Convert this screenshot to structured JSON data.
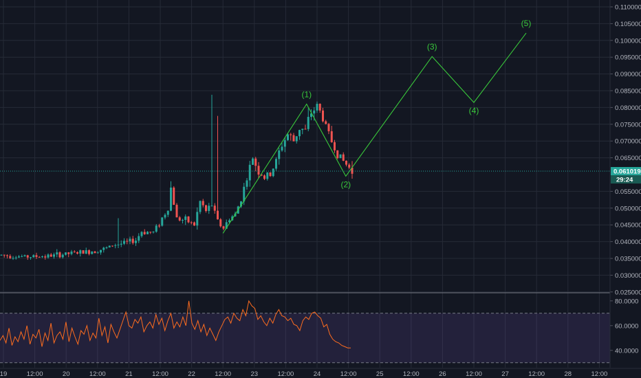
{
  "colors": {
    "background": "#131722",
    "grid": "#262b37",
    "candle_up": "#26a69a",
    "candle_down": "#ef5350",
    "wave_line": "#39c83b",
    "price_line": "#26a69a",
    "rsi_line": "#ff6d1f",
    "rsi_band": "#7e57c2",
    "axis_text": "#b2b5be"
  },
  "price_axis": {
    "ticks": [
      "0.11000000",
      "0.10500000",
      "0.10000000",
      "0.09500000",
      "0.09000000",
      "0.08500000",
      "0.08000000",
      "0.07500000",
      "0.07000000",
      "0.06500000",
      "0.05500000",
      "0.05000000",
      "0.04500000",
      "0.04000000",
      "0.03500000",
      "0.03000000",
      "0.02500000"
    ],
    "current_price": "0.06101932",
    "countdown": "29:24"
  },
  "rsi_axis": {
    "ticks": [
      "80.0000",
      "60.0000",
      "40.0000"
    ]
  },
  "time_axis": {
    "ticks": [
      "19",
      "12:00",
      "20",
      "12:00",
      "21",
      "12:00",
      "22",
      "12:00",
      "23",
      "12:00",
      "24",
      "12:00",
      "25",
      "12:00",
      "26",
      "12:00",
      "27",
      "12:00",
      "28",
      "12:00"
    ]
  },
  "wave_labels": [
    "(1)",
    "(2)",
    "(3)",
    "(4)",
    "(5)"
  ],
  "chart_data": [
    {
      "type": "candlestick",
      "title": "",
      "x_range": [
        "Mar 18 ~20:00",
        "Mar 28 12:00"
      ],
      "ylim": [
        0.0225,
        0.1125
      ],
      "grid": true,
      "current_price": 0.06101932,
      "price_path": [
        [
          0,
          0.036
        ],
        [
          8,
          0.0355
        ],
        [
          16,
          0.0357
        ],
        [
          24,
          0.0365
        ],
        [
          30,
          0.037
        ],
        [
          36,
          0.038
        ],
        [
          38,
          0.039
        ],
        [
          42,
          0.0395
        ],
        [
          46,
          0.0405
        ],
        [
          48,
          0.043
        ],
        [
          52,
          0.0428
        ],
        [
          55,
          0.047
        ],
        [
          57,
          0.05
        ],
        [
          58,
          0.056
        ],
        [
          60,
          0.047
        ],
        [
          64,
          0.046
        ],
        [
          66,
          0.045
        ],
        [
          68,
          0.052
        ],
        [
          70,
          0.049
        ],
        [
          72,
          0.051
        ],
        [
          74,
          0.046
        ],
        [
          76,
          0.044
        ],
        [
          78,
          0.047
        ],
        [
          80,
          0.048
        ],
        [
          82,
          0.053
        ],
        [
          84,
          0.059
        ],
        [
          86,
          0.065
        ],
        [
          88,
          0.061
        ],
        [
          90,
          0.059
        ],
        [
          92,
          0.06
        ],
        [
          94,
          0.064
        ],
        [
          96,
          0.069
        ],
        [
          98,
          0.072
        ],
        [
          100,
          0.07
        ],
        [
          102,
          0.074
        ],
        [
          104,
          0.073
        ],
        [
          106,
          0.0785
        ],
        [
          108,
          0.0805
        ],
        [
          110,
          0.077
        ],
        [
          112,
          0.072
        ],
        [
          114,
          0.068
        ],
        [
          116,
          0.065
        ],
        [
          118,
          0.063
        ],
        [
          120,
          0.061
        ]
      ]
    },
    {
      "type": "line",
      "name": "",
      "points": [
        {
          "label": "(1)",
          "x": "Mar 23 20:00",
          "y": 0.081
        },
        {
          "label": "(2)",
          "x": "Mar 24 11:00",
          "y": 0.0595
        },
        {
          "label": "(3)",
          "x": "Mar 25 20:00",
          "y": 0.0952
        },
        {
          "label": "(4)",
          "x": "Mar 26 12:00",
          "y": 0.0815
        },
        {
          "label": "(5)",
          "x": "Mar 27 08:00",
          "y": 0.1022
        }
      ],
      "start": {
        "x": "Mar 22 12:00",
        "y": 0.0425
      }
    },
    {
      "type": "line",
      "name": "",
      "ylim": [
        26,
        86
      ],
      "band": [
        30,
        70
      ],
      "ticks": [
        80,
        60,
        40
      ],
      "values": [
        48,
        52,
        46,
        58,
        44,
        51,
        47,
        55,
        49,
        60,
        45,
        53,
        50,
        57,
        43,
        54,
        48,
        62,
        46,
        52,
        55,
        49,
        63,
        47,
        58,
        51,
        45,
        56,
        53,
        60,
        48,
        54,
        50,
        66,
        52,
        59,
        46,
        61,
        55,
        50,
        57,
        64,
        71,
        60,
        58,
        65,
        62,
        67,
        55,
        60,
        63,
        58,
        69,
        61,
        66,
        56,
        64,
        70,
        58,
        63,
        59,
        67,
        60,
        80,
        62,
        57,
        64,
        55,
        61,
        52,
        58,
        53,
        48,
        55,
        60,
        65,
        67,
        62,
        70,
        66,
        64,
        73,
        68,
        80,
        76,
        74,
        65,
        68,
        63,
        60,
        66,
        62,
        69,
        73,
        68,
        67,
        64,
        66,
        61,
        60,
        56,
        64,
        67,
        65,
        70,
        71,
        68,
        66,
        59,
        61,
        53,
        49,
        47,
        46,
        44,
        43,
        42,
        42
      ]
    }
  ]
}
